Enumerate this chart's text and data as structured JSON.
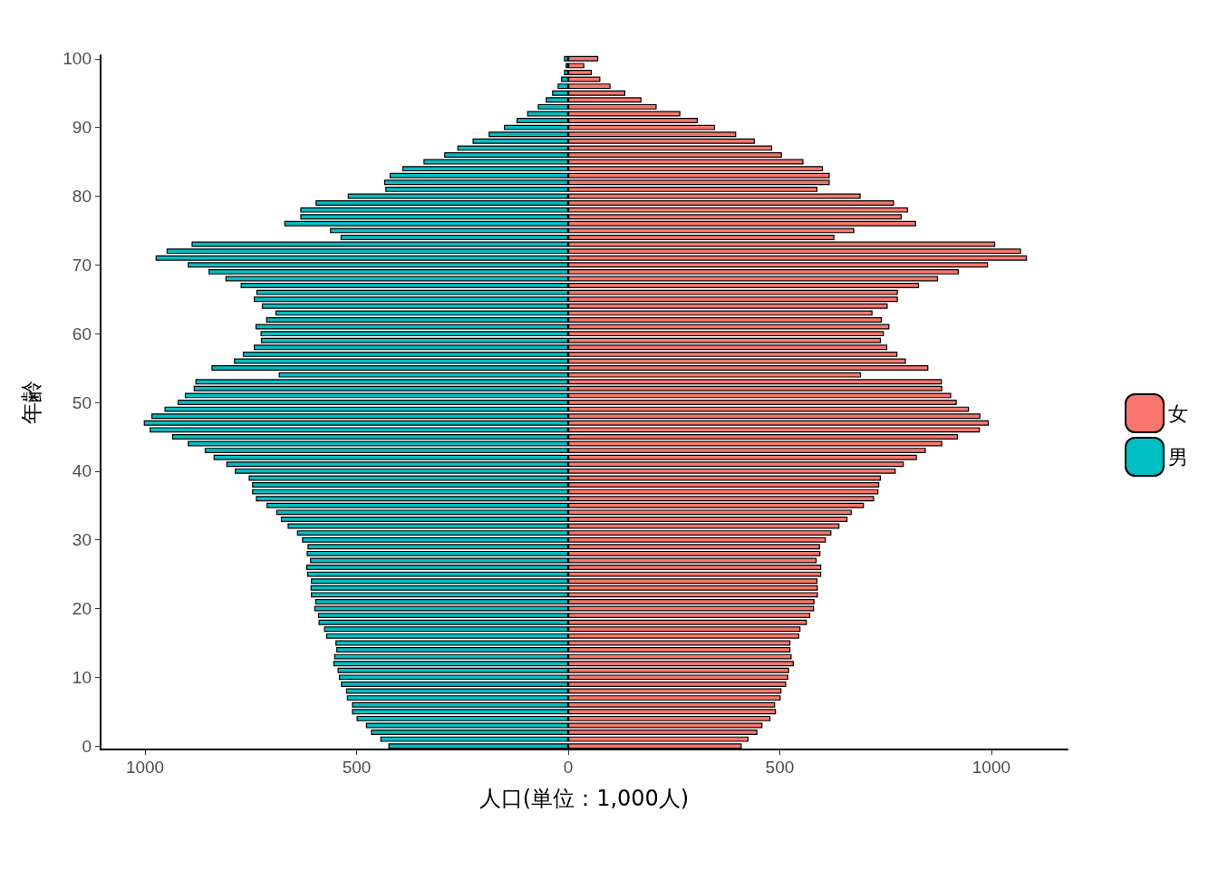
{
  "chart_data": {
    "type": "bar",
    "orientation": "horizontal",
    "stacked": true,
    "xlabel": "人口(単位：1,000人)",
    "ylabel": "年齢",
    "categories": [
      "100",
      null,
      null,
      null,
      null,
      null,
      null,
      null,
      null,
      null,
      "90",
      null,
      null,
      null,
      null,
      null,
      null,
      null,
      null,
      null,
      "80",
      null,
      null,
      null,
      null,
      null,
      null,
      null,
      null,
      null,
      "70",
      null,
      null,
      null,
      null,
      null,
      null,
      null,
      null,
      null,
      "60",
      null,
      null,
      null,
      null,
      null,
      null,
      null,
      null,
      null,
      "50",
      null,
      null,
      null,
      null,
      null,
      null,
      null,
      null,
      null,
      "40",
      null,
      null,
      null,
      null,
      null,
      null,
      null,
      null,
      null,
      "30",
      null,
      null,
      null,
      null,
      null,
      null,
      null,
      null,
      null,
      "20",
      null,
      null,
      null,
      null,
      null,
      null,
      null,
      null,
      null,
      "10",
      null,
      null,
      null,
      null,
      null,
      null,
      null,
      null,
      null,
      "0"
    ],
    "series": [
      {
        "name": "女",
        "color": "#f8766d",
        "values": [
          71,
          38,
          56,
          76,
          100,
          135,
          173,
          209,
          265,
          306,
          347,
          397,
          441,
          482,
          505,
          556,
          602,
          618,
          618,
          589,
          691,
          770,
          803,
          788,
          822,
          676,
          629,
          1009,
          1070,
          1084,
          992,
          923,
          874,
          829,
          779,
          779,
          755,
          719,
          741,
          759,
          746,
          739,
          754,
          778,
          798,
          851,
          692,
          883,
          884,
          905,
          918,
          947,
          974,
          994,
          973,
          921,
          884,
          845,
          824,
          793,
          774,
          739,
          735,
          733,
          723,
          699,
          670,
          660,
          641,
          622,
          609,
          595,
          596,
          587,
          598,
          598,
          589,
          590,
          590,
          582,
          581,
          572,
          564,
          549,
          546,
          525,
          525,
          528,
          533,
          522,
          520,
          515,
          504,
          502,
          489,
          491,
          478,
          459,
          447,
          426,
          410
        ]
      },
      {
        "name": "男",
        "color": "#00bfc4",
        "values": [
          -10,
          -6,
          -10,
          -17,
          -25,
          -38,
          -53,
          -72,
          -97,
          -122,
          -152,
          -188,
          -226,
          -262,
          -293,
          -342,
          -392,
          -422,
          -435,
          -432,
          -521,
          -597,
          -633,
          -633,
          -671,
          -563,
          -538,
          -890,
          -949,
          -975,
          -899,
          -850,
          -810,
          -774,
          -737,
          -743,
          -724,
          -692,
          -714,
          -739,
          -727,
          -726,
          -743,
          -769,
          -790,
          -843,
          -684,
          -881,
          -885,
          -906,
          -923,
          -954,
          -985,
          -1003,
          -989,
          -936,
          -899,
          -859,
          -838,
          -808,
          -788,
          -755,
          -747,
          -747,
          -738,
          -713,
          -690,
          -679,
          -663,
          -641,
          -629,
          -616,
          -618,
          -610,
          -619,
          -617,
          -608,
          -609,
          -608,
          -598,
          -600,
          -591,
          -590,
          -577,
          -572,
          -550,
          -548,
          -553,
          -555,
          -545,
          -542,
          -537,
          -525,
          -523,
          -511,
          -511,
          -500,
          -478,
          -466,
          -444,
          -425
        ]
      }
    ],
    "xlim": [
      -1105,
      1180
    ],
    "xticks": [
      {
        "value": -1000,
        "label": "1000"
      },
      {
        "value": -500,
        "label": "500"
      },
      0,
      500,
      {
        "value": 1000,
        "label": "1000"
      }
    ],
    "legend": "right",
    "grid": false
  }
}
